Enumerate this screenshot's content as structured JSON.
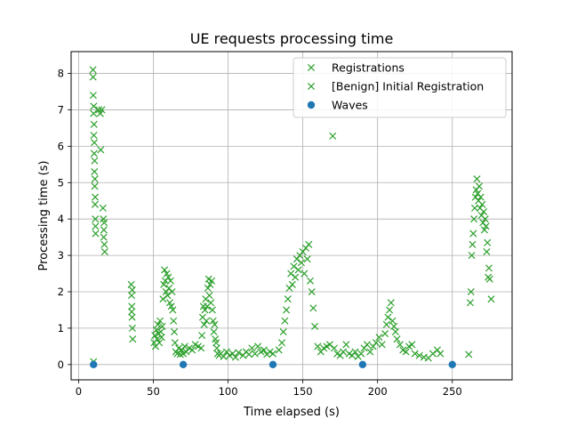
{
  "chart_data": {
    "type": "scatter",
    "title": "UE requests processing time",
    "xlabel": "Time elapsed (s)",
    "ylabel": "Processing time (s)",
    "xlim": [
      -5,
      290
    ],
    "ylim": [
      -0.42,
      8.6
    ],
    "xticks": [
      0,
      50,
      100,
      150,
      200,
      250
    ],
    "yticks": [
      0,
      1,
      2,
      3,
      4,
      5,
      6,
      7,
      8
    ],
    "grid": true,
    "legend_position": "top-right",
    "series": [
      {
        "name": "Registrations",
        "marker": "x",
        "color": "#2ca02c",
        "points": [
          [
            10,
            0.08
          ]
        ]
      },
      {
        "name": "[Benign] Initial Registration",
        "marker": "x",
        "color": "#2ca02c",
        "points": [
          [
            9.6,
            8.1
          ],
          [
            9.8,
            7.4
          ],
          [
            10.0,
            6.9
          ],
          [
            10.2,
            6.3
          ],
          [
            10.4,
            5.8
          ],
          [
            10.6,
            5.3
          ],
          [
            10.8,
            4.9
          ],
          [
            11.0,
            4.4
          ],
          [
            11.2,
            4.0
          ],
          [
            11.4,
            3.6
          ],
          [
            9.7,
            7.9
          ],
          [
            10.1,
            7.1
          ],
          [
            10.5,
            6.1
          ],
          [
            10.9,
            5.1
          ],
          [
            11.3,
            3.8
          ],
          [
            10.3,
            6.6
          ],
          [
            10.7,
            5.6
          ],
          [
            11.1,
            4.6
          ],
          [
            13.5,
            7.0
          ],
          [
            14.5,
            6.9
          ],
          [
            15.5,
            7.0
          ],
          [
            14.8,
            5.9
          ],
          [
            16.3,
            4.3
          ],
          [
            16.6,
            4.0
          ],
          [
            16.9,
            3.7
          ],
          [
            17.2,
            3.3
          ],
          [
            17.5,
            3.1
          ],
          [
            16.8,
            3.5
          ],
          [
            17.1,
            3.9
          ],
          [
            35.2,
            2.2
          ],
          [
            35.4,
            1.9
          ],
          [
            35.6,
            1.6
          ],
          [
            35.8,
            1.3
          ],
          [
            36.0,
            1.0
          ],
          [
            36.2,
            0.7
          ],
          [
            35.5,
            1.45
          ],
          [
            35.9,
            2.05
          ],
          [
            50.5,
            0.6
          ],
          [
            51.0,
            0.8
          ],
          [
            51.5,
            0.5
          ],
          [
            52.0,
            0.95
          ],
          [
            52.5,
            0.7
          ],
          [
            53.0,
            1.1
          ],
          [
            53.5,
            0.85
          ],
          [
            54.0,
            0.6
          ],
          [
            54.5,
            1.2
          ],
          [
            55.0,
            0.9
          ],
          [
            55.5,
            0.75
          ],
          [
            56.0,
            1.05
          ],
          [
            56.5,
            1.8
          ],
          [
            57.0,
            2.2
          ],
          [
            57.5,
            2.6
          ],
          [
            58.0,
            2.3
          ],
          [
            58.5,
            2.0
          ],
          [
            59.0,
            2.5
          ],
          [
            59.5,
            1.9
          ],
          [
            60.0,
            2.4
          ],
          [
            60.5,
            2.1
          ],
          [
            61.0,
            1.7
          ],
          [
            61.5,
            2.3
          ],
          [
            62.0,
            1.6
          ],
          [
            62.5,
            2.0
          ],
          [
            63.0,
            1.5
          ],
          [
            63.5,
            1.2
          ],
          [
            64.0,
            0.9
          ],
          [
            64.5,
            0.6
          ],
          [
            65.0,
            0.35
          ],
          [
            66.0,
            0.3
          ],
          [
            67.0,
            0.45
          ],
          [
            68.0,
            0.28
          ],
          [
            69.0,
            0.4
          ],
          [
            70.0,
            0.3
          ],
          [
            71.0,
            0.5
          ],
          [
            72.0,
            0.35
          ],
          [
            74.0,
            0.45
          ],
          [
            76.0,
            0.4
          ],
          [
            78.0,
            0.55
          ],
          [
            80.0,
            0.5
          ],
          [
            82.0,
            0.45
          ],
          [
            82.5,
            0.8
          ],
          [
            83.0,
            1.3
          ],
          [
            83.5,
            1.6
          ],
          [
            84.0,
            1.1
          ],
          [
            84.5,
            1.5
          ],
          [
            85.0,
            1.8
          ],
          [
            85.5,
            1.2
          ],
          [
            86.0,
            1.6
          ],
          [
            86.5,
            2.1
          ],
          [
            87.0,
            2.35
          ],
          [
            87.5,
            1.9
          ],
          [
            88.0,
            2.2
          ],
          [
            88.5,
            1.7
          ],
          [
            89.0,
            2.3
          ],
          [
            89.5,
            1.5
          ],
          [
            90.0,
            1.2
          ],
          [
            90.5,
            0.9
          ],
          [
            91.0,
            1.1
          ],
          [
            91.5,
            0.7
          ],
          [
            92.0,
            0.6
          ],
          [
            92.5,
            0.45
          ],
          [
            93.0,
            0.3
          ],
          [
            94.0,
            0.25
          ],
          [
            95.0,
            0.3
          ],
          [
            97.0,
            0.22
          ],
          [
            99.0,
            0.35
          ],
          [
            101.0,
            0.25
          ],
          [
            103.0,
            0.3
          ],
          [
            105.0,
            0.2
          ],
          [
            107.0,
            0.33
          ],
          [
            110.0,
            0.25
          ],
          [
            112.0,
            0.35
          ],
          [
            114.0,
            0.28
          ],
          [
            116.0,
            0.45
          ],
          [
            118.0,
            0.3
          ],
          [
            120.0,
            0.5
          ],
          [
            122.0,
            0.35
          ],
          [
            124.0,
            0.4
          ],
          [
            126.0,
            0.28
          ],
          [
            128.0,
            0.35
          ],
          [
            130.0,
            0.3
          ],
          [
            134.0,
            0.4
          ],
          [
            136.0,
            0.6
          ],
          [
            137.0,
            0.9
          ],
          [
            138.0,
            1.2
          ],
          [
            139.0,
            1.5
          ],
          [
            140.0,
            1.8
          ],
          [
            141.0,
            2.1
          ],
          [
            142.0,
            2.5
          ],
          [
            143.0,
            2.2
          ],
          [
            144.0,
            2.7
          ],
          [
            145.0,
            2.4
          ],
          [
            146.0,
            2.9
          ],
          [
            147.0,
            2.6
          ],
          [
            148.0,
            3.0
          ],
          [
            149.0,
            2.8
          ],
          [
            150.0,
            3.1
          ],
          [
            151.0,
            2.5
          ],
          [
            152.0,
            3.2
          ],
          [
            153.0,
            2.9
          ],
          [
            154.0,
            3.3
          ],
          [
            155.0,
            2.3
          ],
          [
            156.0,
            2.0
          ],
          [
            157.0,
            1.55
          ],
          [
            158.0,
            1.05
          ],
          [
            160.0,
            0.5
          ],
          [
            162.0,
            0.35
          ],
          [
            164.0,
            0.45
          ],
          [
            166.0,
            0.5
          ],
          [
            168.0,
            0.55
          ],
          [
            170.0,
            6.28
          ],
          [
            171.0,
            0.45
          ],
          [
            173.0,
            0.3
          ],
          [
            175.0,
            0.25
          ],
          [
            177.0,
            0.35
          ],
          [
            179.0,
            0.55
          ],
          [
            181.0,
            0.3
          ],
          [
            183.0,
            0.25
          ],
          [
            185.0,
            0.35
          ],
          [
            187.0,
            0.22
          ],
          [
            189.0,
            0.3
          ],
          [
            191.0,
            0.45
          ],
          [
            193.0,
            0.55
          ],
          [
            195.0,
            0.35
          ],
          [
            197.0,
            0.5
          ],
          [
            199.0,
            0.6
          ],
          [
            201.0,
            0.75
          ],
          [
            203.0,
            0.55
          ],
          [
            205.0,
            0.85
          ],
          [
            206.0,
            1.1
          ],
          [
            207.0,
            1.3
          ],
          [
            208.0,
            1.5
          ],
          [
            209.0,
            1.7
          ],
          [
            210.0,
            1.2
          ],
          [
            211.0,
            1.05
          ],
          [
            212.0,
            0.9
          ],
          [
            213.0,
            0.7
          ],
          [
            215.0,
            0.55
          ],
          [
            217.0,
            0.4
          ],
          [
            219.0,
            0.35
          ],
          [
            221.0,
            0.5
          ],
          [
            223.0,
            0.55
          ],
          [
            225.0,
            0.3
          ],
          [
            228.0,
            0.25
          ],
          [
            231.0,
            0.2
          ],
          [
            234.0,
            0.18
          ],
          [
            237.0,
            0.3
          ],
          [
            240.0,
            0.4
          ],
          [
            242.0,
            0.3
          ],
          [
            261.0,
            0.28
          ],
          [
            262.0,
            1.7
          ],
          [
            262.5,
            2.0
          ],
          [
            263.0,
            3.0
          ],
          [
            263.5,
            3.3
          ],
          [
            264.0,
            3.6
          ],
          [
            264.5,
            4.0
          ],
          [
            265.0,
            4.3
          ],
          [
            265.5,
            4.6
          ],
          [
            266.0,
            4.8
          ],
          [
            266.5,
            5.1
          ],
          [
            267.0,
            4.7
          ],
          [
            267.5,
            4.5
          ],
          [
            268.0,
            4.9
          ],
          [
            268.5,
            4.3
          ],
          [
            269.0,
            4.6
          ],
          [
            269.5,
            4.1
          ],
          [
            270.0,
            4.4
          ],
          [
            270.5,
            3.9
          ],
          [
            271.0,
            4.2
          ],
          [
            271.5,
            3.7
          ],
          [
            272.0,
            4.0
          ],
          [
            272.5,
            3.8
          ],
          [
            273.0,
            3.1
          ],
          [
            273.5,
            3.35
          ],
          [
            274.0,
            2.4
          ],
          [
            274.5,
            2.65
          ],
          [
            275.0,
            2.35
          ],
          [
            276.0,
            1.8
          ]
        ]
      },
      {
        "name": "Waves",
        "marker": "o",
        "color": "#1f77b4",
        "points": [
          [
            10,
            0
          ],
          [
            70,
            0
          ],
          [
            130,
            0
          ],
          [
            190,
            0
          ],
          [
            250,
            0
          ]
        ]
      }
    ]
  }
}
